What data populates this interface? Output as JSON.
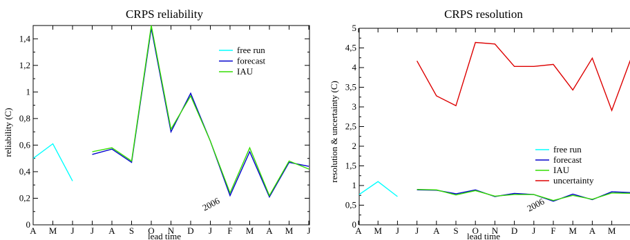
{
  "chart_data": [
    {
      "type": "line",
      "title": "CRPS reliability",
      "xlabel": "lead time",
      "ylabel": "reliability (C)",
      "categories": [
        "A",
        "M",
        "J",
        "J",
        "A",
        "S",
        "O",
        "N",
        "D",
        "J",
        "F",
        "M",
        "A",
        "M",
        "J"
      ],
      "ylim": [
        0,
        1.5
      ],
      "yticks": [
        0,
        0.2,
        0.4,
        0.6,
        0.8,
        1,
        1.2,
        1.4
      ],
      "ytick_labels": [
        "0",
        "0,2",
        "0,4",
        "0,6",
        "0,8",
        "1",
        "1,2",
        "1,4"
      ],
      "annotation": "2006",
      "legend_position": "top-right",
      "grid": false,
      "series": [
        {
          "name": "free run",
          "color": "#00ffff",
          "values": [
            0.5,
            0.61,
            0.33,
            null,
            null,
            null,
            null,
            null,
            null,
            null,
            null,
            null,
            null,
            null,
            null
          ]
        },
        {
          "name": "forecast",
          "color": "#0000cc",
          "values": [
            null,
            null,
            null,
            0.53,
            0.57,
            0.47,
            1.48,
            0.7,
            0.99,
            0.63,
            0.22,
            0.55,
            0.21,
            0.47,
            0.44
          ]
        },
        {
          "name": "IAU",
          "color": "#33dd00",
          "values": [
            null,
            null,
            null,
            0.55,
            0.58,
            0.48,
            1.5,
            0.72,
            0.97,
            0.63,
            0.24,
            0.58,
            0.22,
            0.48,
            0.42
          ]
        }
      ]
    },
    {
      "type": "line",
      "title": "CRPS resolution",
      "xlabel": "lead time",
      "ylabel": "resolution & uncertainty (C)",
      "categories": [
        "A",
        "M",
        "J",
        "J",
        "A",
        "S",
        "O",
        "N",
        "D",
        "J",
        "F",
        "M",
        "A",
        "M",
        ""
      ],
      "ylim": [
        0,
        5
      ],
      "yticks": [
        0,
        0.5,
        1,
        1.5,
        2,
        2.5,
        3,
        3.5,
        4,
        4.5,
        5
      ],
      "ytick_labels": [
        "0",
        "0,5",
        "1",
        "1,5",
        "2",
        "2,5",
        "3",
        "3,5",
        "4",
        "4,5",
        "5"
      ],
      "annotation": "2006",
      "legend_position": "center-right",
      "grid": false,
      "series": [
        {
          "name": "free run",
          "color": "#00ffff",
          "values": [
            0.76,
            1.1,
            0.72,
            null,
            null,
            null,
            null,
            null,
            null,
            null,
            null,
            null,
            null,
            null,
            null
          ]
        },
        {
          "name": "forecast",
          "color": "#0000cc",
          "values": [
            null,
            null,
            null,
            0.89,
            0.88,
            0.79,
            0.89,
            0.72,
            0.8,
            0.77,
            0.6,
            0.78,
            0.64,
            0.84,
            0.82
          ]
        },
        {
          "name": "IAU",
          "color": "#33dd00",
          "values": [
            null,
            null,
            null,
            0.9,
            0.89,
            0.76,
            0.87,
            0.73,
            0.77,
            0.77,
            0.62,
            0.75,
            0.65,
            0.81,
            0.8
          ]
        },
        {
          "name": "uncertainty",
          "color": "#dd0000",
          "values": [
            null,
            null,
            null,
            4.17,
            3.28,
            3.03,
            4.64,
            4.6,
            4.03,
            4.03,
            4.08,
            3.43,
            4.24,
            2.91,
            4.25
          ]
        }
      ]
    }
  ]
}
